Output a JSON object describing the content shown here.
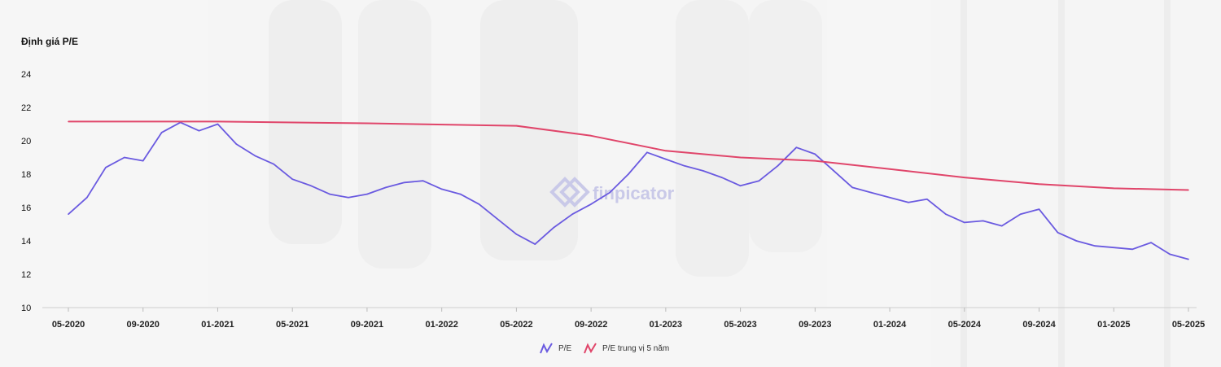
{
  "watermark": {
    "brand": "finpicator"
  },
  "chart_data": {
    "type": "line",
    "ylabel": "Định giá P/E",
    "xlabel": "",
    "ylim": [
      10,
      24
    ],
    "yticks": [
      10,
      12,
      14,
      16,
      18,
      20,
      22,
      24
    ],
    "xticks": [
      "05-2020",
      "09-2020",
      "01-2021",
      "05-2021",
      "09-2021",
      "01-2022",
      "05-2022",
      "09-2022",
      "01-2023",
      "05-2023",
      "09-2023",
      "01-2024",
      "05-2024",
      "09-2024",
      "01-2025",
      "05-2025"
    ],
    "grid": false,
    "legend_position": "bottom",
    "series": [
      {
        "name": "P/E",
        "color": "#6a5ae0",
        "points": [
          [
            "05-2020",
            15.6
          ],
          [
            "06-2020",
            16.6
          ],
          [
            "07-2020",
            18.4
          ],
          [
            "08-2020",
            19.0
          ],
          [
            "09-2020",
            18.8
          ],
          [
            "10-2020",
            20.5
          ],
          [
            "11-2020",
            21.1
          ],
          [
            "12-2020",
            20.6
          ],
          [
            "01-2021",
            21.0
          ],
          [
            "02-2021",
            19.8
          ],
          [
            "03-2021",
            19.1
          ],
          [
            "04-2021",
            18.6
          ],
          [
            "05-2021",
            17.7
          ],
          [
            "06-2021",
            17.3
          ],
          [
            "07-2021",
            16.8
          ],
          [
            "08-2021",
            16.6
          ],
          [
            "09-2021",
            16.8
          ],
          [
            "10-2021",
            17.2
          ],
          [
            "11-2021",
            17.5
          ],
          [
            "12-2021",
            17.6
          ],
          [
            "01-2022",
            17.1
          ],
          [
            "02-2022",
            16.8
          ],
          [
            "03-2022",
            16.2
          ],
          [
            "04-2022",
            15.3
          ],
          [
            "05-2022",
            14.4
          ],
          [
            "06-2022",
            13.8
          ],
          [
            "07-2022",
            14.8
          ],
          [
            "08-2022",
            15.6
          ],
          [
            "09-2022",
            16.2
          ],
          [
            "10-2022",
            16.9
          ],
          [
            "11-2022",
            18.0
          ],
          [
            "12-2022",
            19.3
          ],
          [
            "01-2023",
            18.9
          ],
          [
            "02-2023",
            18.5
          ],
          [
            "03-2023",
            18.2
          ],
          [
            "04-2023",
            17.8
          ],
          [
            "05-2023",
            17.3
          ],
          [
            "06-2023",
            17.6
          ],
          [
            "07-2023",
            18.5
          ],
          [
            "08-2023",
            19.6
          ],
          [
            "09-2023",
            19.2
          ],
          [
            "10-2023",
            18.2
          ],
          [
            "11-2023",
            17.2
          ],
          [
            "12-2023",
            16.9
          ],
          [
            "01-2024",
            16.6
          ],
          [
            "02-2024",
            16.3
          ],
          [
            "03-2024",
            16.5
          ],
          [
            "04-2024",
            15.6
          ],
          [
            "05-2024",
            15.1
          ],
          [
            "06-2024",
            15.2
          ],
          [
            "07-2024",
            14.9
          ],
          [
            "08-2024",
            15.6
          ],
          [
            "09-2024",
            15.9
          ],
          [
            "10-2024",
            14.5
          ],
          [
            "11-2024",
            14.0
          ],
          [
            "12-2024",
            13.7
          ],
          [
            "01-2025",
            13.6
          ],
          [
            "02-2025",
            13.5
          ],
          [
            "03-2025",
            13.9
          ],
          [
            "04-2025",
            13.2
          ],
          [
            "05-2025",
            12.9
          ]
        ]
      },
      {
        "name": "P/E trung vị 5 năm",
        "color": "#e0456a",
        "points": [
          [
            "05-2020",
            21.15
          ],
          [
            "01-2021",
            21.15
          ],
          [
            "09-2021",
            21.05
          ],
          [
            "05-2022",
            20.9
          ],
          [
            "09-2022",
            20.3
          ],
          [
            "01-2023",
            19.4
          ],
          [
            "05-2023",
            19.0
          ],
          [
            "09-2023",
            18.8
          ],
          [
            "01-2024",
            18.3
          ],
          [
            "05-2024",
            17.8
          ],
          [
            "09-2024",
            17.4
          ],
          [
            "01-2025",
            17.15
          ],
          [
            "05-2025",
            17.05
          ]
        ]
      }
    ]
  }
}
